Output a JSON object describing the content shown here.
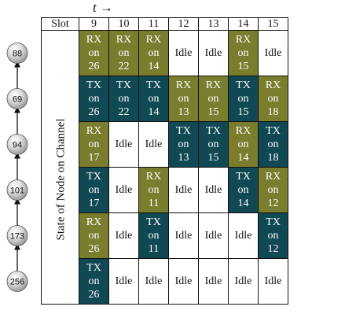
{
  "time_axis_label": "t →",
  "header": {
    "slot_label": "Slot",
    "slots": [
      "9",
      "10",
      "11",
      "12",
      "13",
      "14",
      "15"
    ]
  },
  "row_axis_label": "State of Node on Channel",
  "nodes": [
    "88",
    "69",
    "94",
    "101",
    "173",
    "256"
  ],
  "rows": [
    [
      {
        "state": "rx",
        "lines": [
          "RX",
          "on",
          "26"
        ]
      },
      {
        "state": "rx",
        "lines": [
          "RX",
          "on",
          "22"
        ]
      },
      {
        "state": "rx",
        "lines": [
          "RX",
          "on",
          "14"
        ]
      },
      {
        "state": "idle",
        "lines": [
          "Idle"
        ]
      },
      {
        "state": "idle",
        "lines": [
          "Idle"
        ]
      },
      {
        "state": "rx",
        "lines": [
          "RX",
          "on",
          "15"
        ]
      },
      {
        "state": "idle",
        "lines": [
          "Idle"
        ]
      }
    ],
    [
      {
        "state": "tx",
        "lines": [
          "TX",
          "on",
          "26"
        ]
      },
      {
        "state": "tx",
        "lines": [
          "TX",
          "on",
          "22"
        ]
      },
      {
        "state": "tx",
        "lines": [
          "TX",
          "on",
          "14"
        ]
      },
      {
        "state": "rx",
        "lines": [
          "RX",
          "on",
          "13"
        ]
      },
      {
        "state": "rx",
        "lines": [
          "RX",
          "on",
          "15"
        ]
      },
      {
        "state": "tx",
        "lines": [
          "TX",
          "on",
          "15"
        ]
      },
      {
        "state": "rx",
        "lines": [
          "RX",
          "on",
          "18"
        ]
      }
    ],
    [
      {
        "state": "rx",
        "lines": [
          "RX",
          "on",
          "17"
        ]
      },
      {
        "state": "idle",
        "lines": [
          "Idle"
        ]
      },
      {
        "state": "idle",
        "lines": [
          "Idle"
        ]
      },
      {
        "state": "tx",
        "lines": [
          "TX",
          "on",
          "13"
        ]
      },
      {
        "state": "tx",
        "lines": [
          "TX",
          "on",
          "15"
        ]
      },
      {
        "state": "rx",
        "lines": [
          "RX",
          "on",
          "14"
        ]
      },
      {
        "state": "tx",
        "lines": [
          "TX",
          "on",
          "18"
        ]
      }
    ],
    [
      {
        "state": "tx",
        "lines": [
          "TX",
          "on",
          "17"
        ]
      },
      {
        "state": "idle",
        "lines": [
          "Idle"
        ]
      },
      {
        "state": "rx",
        "lines": [
          "RX",
          "on",
          "11"
        ]
      },
      {
        "state": "idle",
        "lines": [
          "Idle"
        ]
      },
      {
        "state": "idle",
        "lines": [
          "Idle"
        ]
      },
      {
        "state": "tx",
        "lines": [
          "TX",
          "on",
          "14"
        ]
      },
      {
        "state": "rx",
        "lines": [
          "RX",
          "on",
          "12"
        ]
      }
    ],
    [
      {
        "state": "rx",
        "lines": [
          "RX",
          "on",
          "26"
        ]
      },
      {
        "state": "idle",
        "lines": [
          "Idle"
        ]
      },
      {
        "state": "tx",
        "lines": [
          "TX",
          "on",
          "11"
        ]
      },
      {
        "state": "idle",
        "lines": [
          "Idle"
        ]
      },
      {
        "state": "idle",
        "lines": [
          "Idle"
        ]
      },
      {
        "state": "idle",
        "lines": [
          "Idle"
        ]
      },
      {
        "state": "tx",
        "lines": [
          "TX",
          "on",
          "12"
        ]
      }
    ],
    [
      {
        "state": "tx",
        "lines": [
          "TX",
          "on",
          "26"
        ]
      },
      {
        "state": "idle",
        "lines": [
          "Idle"
        ]
      },
      {
        "state": "idle",
        "lines": [
          "Idle"
        ]
      },
      {
        "state": "idle",
        "lines": [
          "Idle"
        ]
      },
      {
        "state": "idle",
        "lines": [
          "Idle"
        ]
      },
      {
        "state": "idle",
        "lines": [
          "Idle"
        ]
      },
      {
        "state": "idle",
        "lines": [
          "Idle"
        ]
      }
    ]
  ],
  "colors": {
    "rx": "#7a7d2e",
    "tx": "#104853",
    "idle": "#ffffff"
  }
}
